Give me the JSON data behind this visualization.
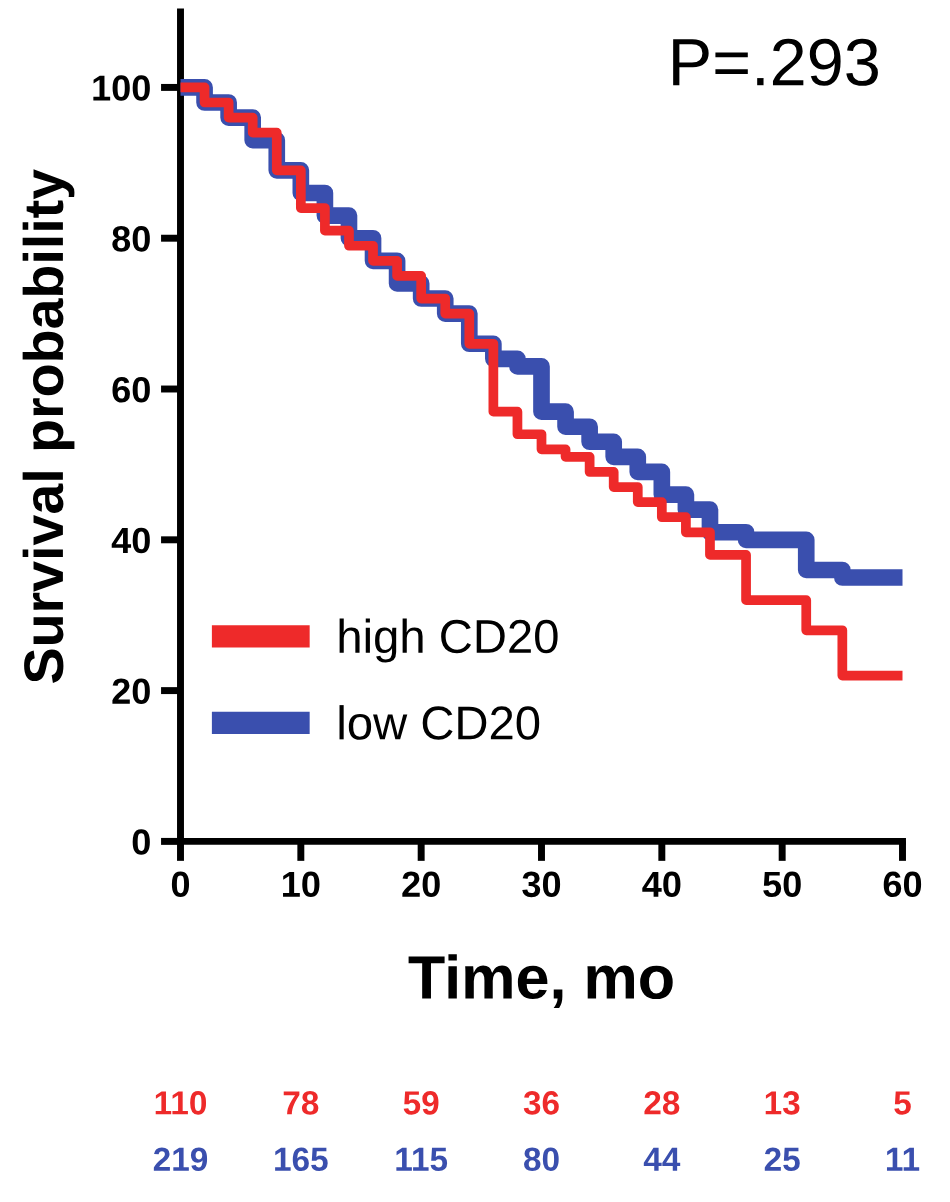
{
  "chart_data": {
    "type": "step",
    "xlabel": "Time, mo",
    "ylabel": "Survival probability",
    "xlim": [
      0,
      60
    ],
    "xticks": [
      0,
      10,
      20,
      30,
      40,
      50,
      60
    ],
    "ylim": [
      0,
      110
    ],
    "yticks": [
      0,
      20,
      40,
      60,
      80,
      100
    ],
    "series": [
      {
        "name": "high CD20",
        "color": "#ee2a2a",
        "x": [
          0,
          2,
          4,
          6,
          8,
          10,
          12,
          14,
          16,
          18,
          20,
          22,
          24,
          26,
          28,
          30,
          32,
          34,
          36,
          38,
          40,
          42,
          44,
          47,
          52,
          55,
          60
        ],
        "values": [
          100,
          98,
          96,
          94,
          89,
          84,
          81,
          79,
          77,
          75,
          72,
          70,
          66,
          57,
          54,
          52,
          51,
          49,
          47,
          45,
          43,
          41,
          38,
          32,
          28,
          22,
          22
        ]
      },
      {
        "name": "low CD20",
        "color": "#3a4fae",
        "x": [
          0,
          2,
          4,
          6,
          8,
          10,
          12,
          14,
          16,
          18,
          20,
          22,
          24,
          26,
          28,
          30,
          32,
          34,
          36,
          38,
          40,
          42,
          44,
          47,
          52,
          55,
          60
        ],
        "values": [
          100,
          98,
          96,
          93,
          89,
          86,
          83,
          80,
          77,
          74,
          72,
          70,
          66,
          64,
          63,
          57,
          55,
          53,
          51,
          49,
          46,
          44,
          41,
          40,
          36,
          35,
          35
        ]
      }
    ],
    "legend": "bottom left",
    "grid": false,
    "line_style": "solid",
    "annotations": [
      "P=.293",
      "110",
      "78",
      "59",
      "36",
      "28",
      "13",
      "5",
      "219",
      "165",
      "115",
      "80",
      "44",
      "25",
      "11"
    ]
  }
}
